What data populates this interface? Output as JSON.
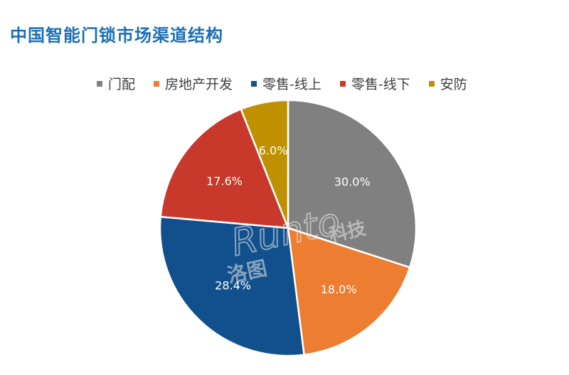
{
  "title": "中国智能门锁市场渠道结构",
  "watermark": {
    "brand": "Runto",
    "cn_left": "洛图",
    "cn_right": "科技"
  },
  "chart_data": {
    "type": "pie",
    "title": "中国智能门锁市场渠道结构",
    "legend_position": "top",
    "start_angle_deg": 0,
    "direction": "clockwise",
    "slices": [
      {
        "label": "门配",
        "value": 30.0,
        "value_label": "30.0%",
        "color": "#808080"
      },
      {
        "label": "房地产开发",
        "value": 18.0,
        "value_label": "18.0%",
        "color": "#ed7d31"
      },
      {
        "label": "零售-线上",
        "value": 28.4,
        "value_label": "28.4%",
        "color": "#11508c"
      },
      {
        "label": "零售-线下",
        "value": 17.6,
        "value_label": "17.6%",
        "color": "#c8392b"
      },
      {
        "label": "安防",
        "value": 6.0,
        "value_label": "6.0%",
        "color": "#bf9000"
      }
    ]
  }
}
